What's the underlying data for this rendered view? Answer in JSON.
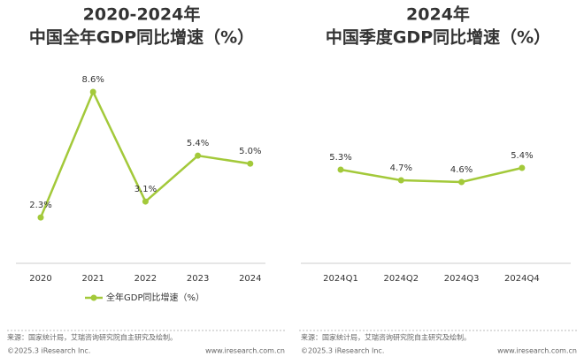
{
  "chart_data": [
    {
      "type": "line",
      "title": "2020-2024年",
      "subtitle": "中国全年GDP同比增速（%）",
      "categories": [
        "2020",
        "2021",
        "2022",
        "2023",
        "2024"
      ],
      "series": [
        {
          "name": "全年GDP同比增速（%）",
          "color": "#a3c93a",
          "values": [
            2.3,
            8.6,
            3.1,
            5.4,
            5.0
          ],
          "value_labels": [
            "2.3%",
            "8.6%",
            "3.1%",
            "5.4%",
            "5.0%"
          ]
        }
      ],
      "legend": "bottom"
    },
    {
      "type": "line",
      "title": "2024年",
      "subtitle": "中国季度GDP同比增速（%）",
      "categories": [
        "2024Q1",
        "2024Q2",
        "2024Q3",
        "2024Q4"
      ],
      "values": [
        5.3,
        4.7,
        4.6,
        5.4
      ],
      "value_labels": [
        "5.3%",
        "4.7%",
        "4.6%",
        "5.4%"
      ],
      "color": "#a3c93a"
    }
  ],
  "footer": {
    "source": "来源：国家统计局，艾瑞咨询研究院自主研究及绘制。",
    "copyright": "©2025.3 iResearch Inc.",
    "website": "www.iresearch.com.cn"
  }
}
